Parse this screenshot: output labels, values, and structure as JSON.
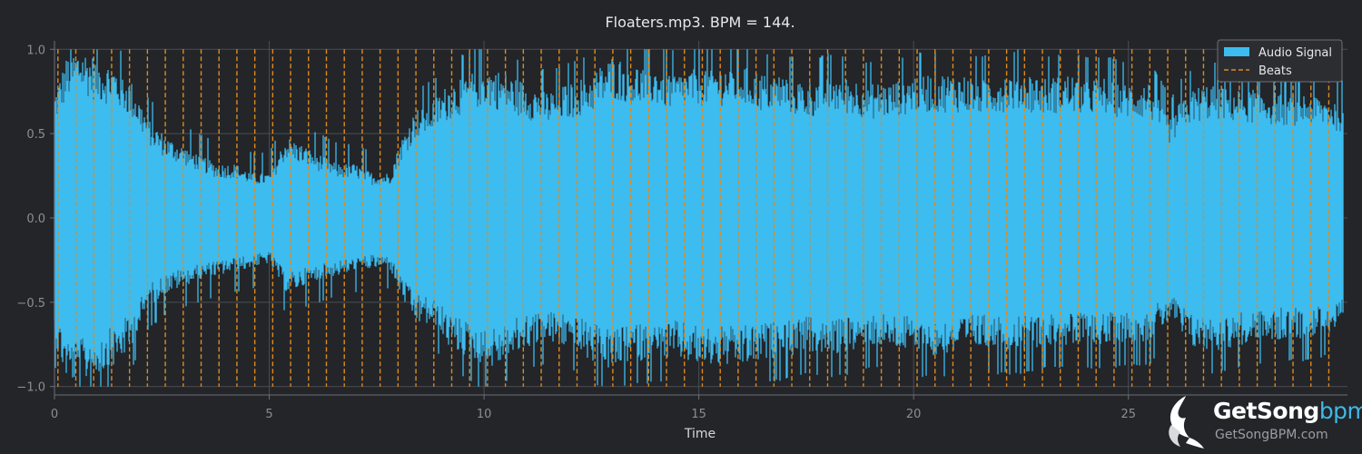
{
  "chart_data": {
    "type": "area",
    "title": "Floaters.mp3. BPM = 144.",
    "xlabel": "Time",
    "ylabel": "",
    "xlim": [
      0,
      30.1
    ],
    "ylim": [
      -1.05,
      1.05
    ],
    "x_ticks": [
      0,
      5,
      10,
      15,
      20,
      25
    ],
    "x_tick_labels": [
      "0",
      "5",
      "10",
      "15",
      "20",
      "25"
    ],
    "y_ticks": [
      1.0,
      0.5,
      0.0,
      -0.5,
      -1.0
    ],
    "y_tick_labels": [
      "1.0",
      "0.5",
      "0.0",
      "−0.5",
      "−1.0"
    ],
    "grid": true,
    "legend_position": "top-right",
    "series": [
      {
        "name": "Audio Signal",
        "type": "area",
        "color": "#3dbcf0",
        "duration_s": 30.0,
        "envelope": {
          "t": [
            0,
            0.3,
            0.6,
            1.0,
            1.4,
            1.8,
            2.2,
            2.6,
            3.0,
            3.4,
            3.8,
            4.2,
            4.6,
            5.0,
            5.4,
            5.8,
            6.2,
            6.6,
            7.0,
            7.4,
            7.8,
            8.1,
            8.4,
            8.8,
            9.2,
            9.6,
            10.0,
            10.5,
            11.0,
            11.5,
            12.0,
            12.5,
            13.0,
            13.5,
            14.0,
            14.5,
            15.0,
            15.5,
            16.0,
            16.5,
            17.0,
            17.5,
            18.0,
            18.5,
            19.0,
            19.5,
            20.0,
            20.5,
            21.0,
            21.5,
            22.0,
            22.5,
            23.0,
            23.5,
            24.0,
            24.5,
            25.0,
            25.5,
            26.0,
            26.2,
            26.5,
            27.0,
            27.5,
            28.0,
            28.5,
            29.0,
            29.5,
            30.0
          ],
          "upper": [
            0.7,
            0.9,
            0.95,
            0.88,
            0.85,
            0.75,
            0.55,
            0.45,
            0.4,
            0.35,
            0.3,
            0.3,
            0.25,
            0.25,
            0.45,
            0.4,
            0.35,
            0.3,
            0.3,
            0.25,
            0.25,
            0.45,
            0.6,
            0.65,
            0.75,
            0.8,
            0.85,
            0.8,
            0.75,
            0.7,
            0.75,
            0.8,
            0.9,
            0.85,
            0.85,
            0.8,
            0.85,
            0.85,
            0.85,
            0.8,
            0.8,
            0.75,
            0.8,
            0.78,
            0.75,
            0.75,
            0.8,
            0.8,
            0.8,
            0.78,
            0.8,
            0.82,
            0.78,
            0.8,
            0.78,
            0.78,
            0.75,
            0.75,
            0.55,
            0.65,
            0.72,
            0.75,
            0.72,
            0.72,
            0.7,
            0.7,
            0.68,
            0.65
          ],
          "lower": [
            -0.7,
            -0.9,
            -0.92,
            -0.88,
            -0.82,
            -0.72,
            -0.5,
            -0.42,
            -0.38,
            -0.35,
            -0.32,
            -0.3,
            -0.28,
            -0.25,
            -0.42,
            -0.38,
            -0.35,
            -0.32,
            -0.3,
            -0.28,
            -0.28,
            -0.45,
            -0.58,
            -0.6,
            -0.72,
            -0.78,
            -0.85,
            -0.8,
            -0.72,
            -0.7,
            -0.72,
            -0.8,
            -0.85,
            -0.8,
            -0.8,
            -0.78,
            -0.82,
            -0.82,
            -0.82,
            -0.8,
            -0.78,
            -0.75,
            -0.78,
            -0.75,
            -0.72,
            -0.72,
            -0.75,
            -0.78,
            -0.75,
            -0.72,
            -0.75,
            -0.75,
            -0.72,
            -0.72,
            -0.72,
            -0.72,
            -0.7,
            -0.7,
            -0.55,
            -0.65,
            -0.72,
            -0.75,
            -0.72,
            -0.7,
            -0.68,
            -0.68,
            -0.66,
            -0.62
          ],
          "peak_abs": 1.0
        }
      },
      {
        "name": "Beats",
        "type": "vlines",
        "color": "#e08a1e",
        "style": "dashed",
        "first_beat_s": 0.08,
        "interval_s": 0.4167,
        "last_beat_s": 29.7
      }
    ]
  },
  "watermark": {
    "name_main": "GetSong",
    "name_suffix": "bpm",
    "url": "GetSongBPM.com"
  }
}
